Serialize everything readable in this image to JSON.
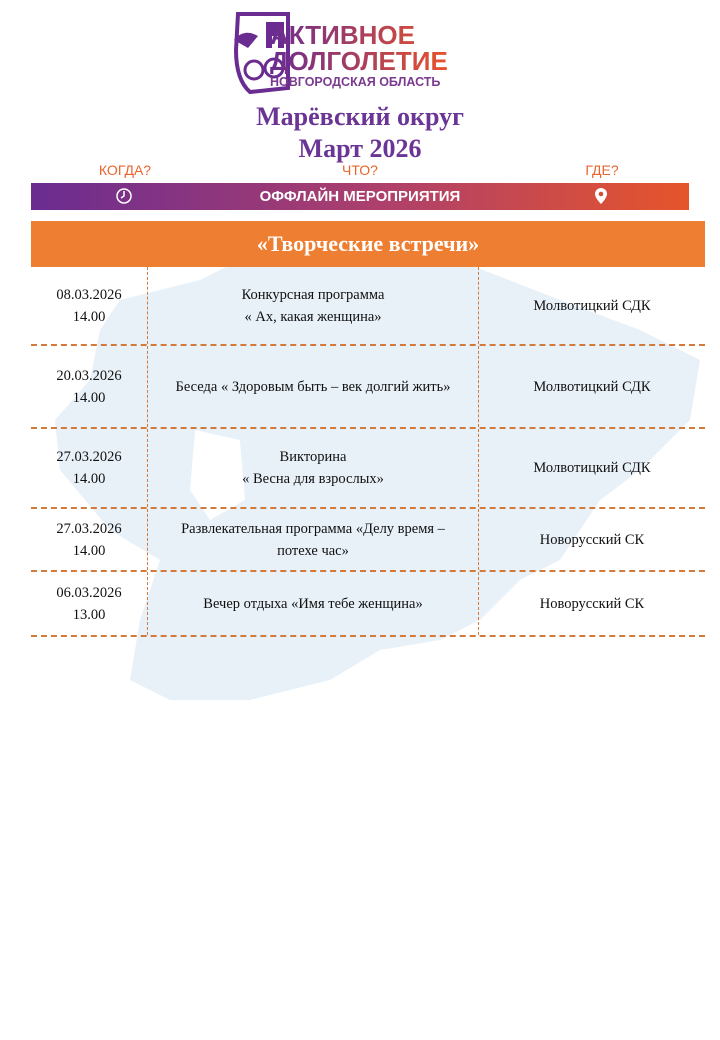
{
  "logo": {
    "line1": "АКТИВНОЕ",
    "line2": "ДОЛГОЛЕТИЕ",
    "line3": "НОВГОРОДСКАЯ ОБЛАСТЬ"
  },
  "header": {
    "district": "Марёвский округ",
    "month": "Март 2026"
  },
  "labels": {
    "when": "КОГДА?",
    "what": "ЧТО?",
    "where": "ГДЕ?"
  },
  "banner": {
    "text": "ОФФЛАЙН МЕРОПРИЯТИЯ",
    "left_icon": "clock-icon",
    "right_icon": "location-pin-icon"
  },
  "colors": {
    "purple": "#6a2c91",
    "orange": "#ee7f32",
    "map": "#e8f0f8"
  },
  "section": {
    "title": "«Творческие встречи»"
  },
  "events": [
    {
      "date": "08.03.2026",
      "time": "14.00",
      "title": "Конкурсная программа",
      "title2": "« Ах, какая  женщина»",
      "place": "Молвотицкий СДК"
    },
    {
      "date": "20.03.2026",
      "time": "14.00",
      "title": "Беседа « Здоровым быть – век долгий жить»",
      "title2": "",
      "place": "Молвотицкий СДК"
    },
    {
      "date": "27.03.2026",
      "time": "14.00",
      "title": "Викторина",
      "title2": "« Весна для взрослых»",
      "place": "Молвотицкий СДК"
    },
    {
      "date": "27.03.2026",
      "time": "14.00",
      "title": "Развлекательная программа «Делу время –",
      "title2": "потехе час»",
      "place": "Новорусский СК"
    },
    {
      "date": "06.03.2026",
      "time": "13.00",
      "title": "Вечер отдыха «Имя  тебе женщина»",
      "title2": "",
      "place": "Новорусский СК"
    }
  ]
}
